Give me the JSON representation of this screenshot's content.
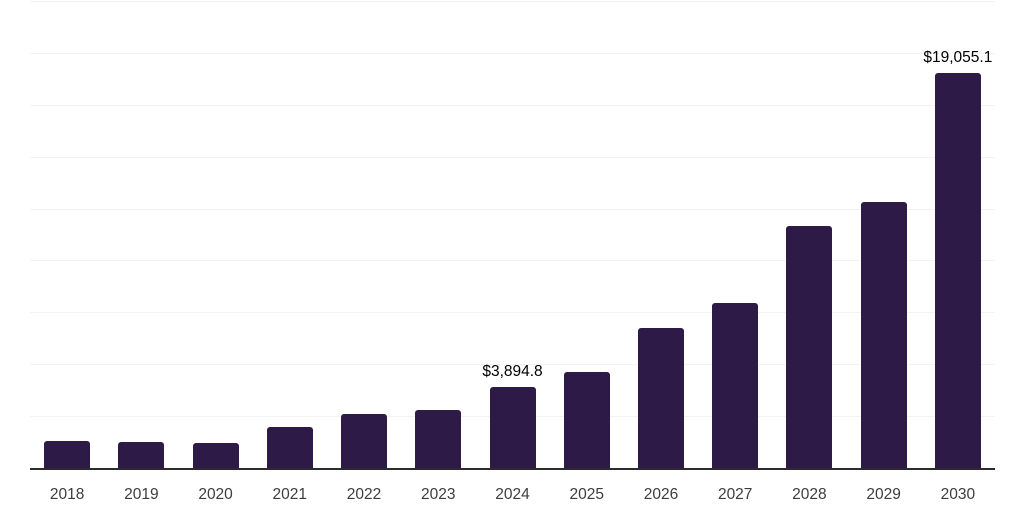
{
  "chart_data": {
    "type": "bar",
    "title": "",
    "xlabel": "",
    "ylabel": "",
    "categories": [
      "2018",
      "2019",
      "2020",
      "2021",
      "2022",
      "2023",
      "2024",
      "2025",
      "2026",
      "2027",
      "2028",
      "2029",
      "2030"
    ],
    "values": [
      1300,
      1255,
      1205,
      1975,
      2600,
      2790,
      3894.8,
      4620,
      6730,
      7940,
      11660,
      12810,
      19055.1
    ],
    "data_labels": [
      null,
      null,
      null,
      null,
      null,
      null,
      "$3,894.8",
      null,
      null,
      null,
      null,
      null,
      "$19,055.1"
    ],
    "ylim": [
      0,
      22500
    ],
    "gridline_interval": 2500,
    "grid": true,
    "legend": false,
    "currency_prefix": "$",
    "colors": {
      "bar": "#2e1a47",
      "gridline": "#f3f3f4",
      "axis_line": "#2b2b2b",
      "tick_label": "#3d3d3d",
      "data_label": "#000000",
      "background": "#ffffff"
    }
  }
}
